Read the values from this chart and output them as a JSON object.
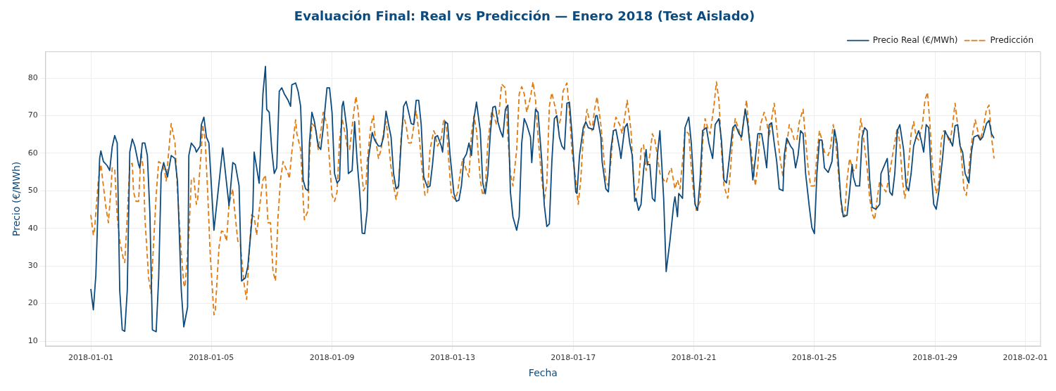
{
  "chart_data": {
    "type": "line",
    "title": "Evaluación Final: Real vs Predicción — Enero 2018 (Test Aislado)",
    "xlabel": "Fecha",
    "ylabel": "Precio (€/MWh)",
    "xlim": [
      "2017-12-30T12:00",
      "2018-02-01T12:00"
    ],
    "ylim": [
      8.7,
      87
    ],
    "xticks": [
      "2018-01-01",
      "2018-01-05",
      "2018-01-09",
      "2018-01-13",
      "2018-01-17",
      "2018-01-21",
      "2018-01-25",
      "2018-01-29",
      "2018-02-01"
    ],
    "yticks": [
      10,
      20,
      30,
      40,
      50,
      60,
      70,
      80
    ],
    "grid": true,
    "legend": "top right",
    "series": [
      {
        "name": "Precio Real (€/MWh)",
        "color": "#0d4a7d",
        "line_style": "solid",
        "x": [
          "2018-01-01T00:00",
          "2018-01-01T02:00",
          "2018-01-01T04:00",
          "2018-01-01T07:00",
          "2018-01-01T08:00",
          "2018-01-01T10:00",
          "2018-01-01T13:00",
          "2018-01-01T15:00",
          "2018-01-01T17:00",
          "2018-01-01T19:00",
          "2018-01-01T21:00",
          "2018-01-01T23:00",
          "2018-01-02T01:00",
          "2018-01-02T03:00",
          "2018-01-02T05:00",
          "2018-01-02T07:00",
          "2018-01-02T09:00",
          "2018-01-02T11:00",
          "2018-01-02T14:00",
          "2018-01-02T15:00",
          "2018-01-02T17:00",
          "2018-01-02T19:00",
          "2018-01-02T21:00",
          "2018-01-02T23:00",
          "2018-01-03T01:00",
          "2018-01-03T04:00",
          "2018-01-03T06:00",
          "2018-01-03T08:00",
          "2018-01-03T10:00",
          "2018-01-03T13:00",
          "2018-01-03T16:00",
          "2018-01-03T19:00",
          "2018-01-03T21:00",
          "2018-01-04T00:00",
          "2018-01-04T02:00",
          "2018-01-04T05:00",
          "2018-01-04T06:00",
          "2018-01-04T08:00",
          "2018-01-04T11:00",
          "2018-01-04T12:00",
          "2018-01-04T15:00",
          "2018-01-04T16:00",
          "2018-01-04T18:00",
          "2018-01-04T20:00",
          "2018-01-04T22:00",
          "2018-01-05T02:00",
          "2018-01-05T09:00",
          "2018-01-05T14:00",
          "2018-01-05T17:00",
          "2018-01-05T19:00",
          "2018-01-05T22:00",
          "2018-01-06T00:00",
          "2018-01-06T03:00",
          "2018-01-06T05:00",
          "2018-01-06T09:00",
          "2018-01-06T10:00",
          "2018-01-06T14:00",
          "2018-01-06T17:00",
          "2018-01-06T19:00",
          "2018-01-06T20:00",
          "2018-01-06T22:00",
          "2018-01-07T00:00",
          "2018-01-07T02:00",
          "2018-01-07T04:00",
          "2018-01-07T06:00",
          "2018-01-07T08:00",
          "2018-01-07T10:00",
          "2018-01-07T13:00",
          "2018-01-07T15:00",
          "2018-01-07T16:00",
          "2018-01-07T19:00",
          "2018-01-07T21:00",
          "2018-01-07T23:00",
          "2018-01-08T01:00",
          "2018-01-08T03:00",
          "2018-01-08T05:00",
          "2018-01-08T06:00",
          "2018-01-08T08:00",
          "2018-01-08T10:00",
          "2018-01-08T13:00",
          "2018-01-08T15:00",
          "2018-01-08T17:00",
          "2018-01-08T20:00",
          "2018-01-08T22:00",
          "2018-01-09T00:00",
          "2018-01-09T02:00",
          "2018-01-09T04:00",
          "2018-01-09T06:00",
          "2018-01-09T08:00",
          "2018-01-09T09:00",
          "2018-01-09T12:00",
          "2018-01-09T13:00",
          "2018-01-09T16:00",
          "2018-01-09T18:00",
          "2018-01-09T20:00",
          "2018-01-09T22:00",
          "2018-01-10T00:00",
          "2018-01-10T02:00",
          "2018-01-10T04:00",
          "2018-01-10T05:00",
          "2018-01-10T08:00",
          "2018-01-10T10:00",
          "2018-01-10T13:00",
          "2018-01-10T15:00",
          "2018-01-10T17:00",
          "2018-01-10T19:00",
          "2018-01-10T21:00",
          "2018-01-10T23:00",
          "2018-01-11T01:00",
          "2018-01-11T03:00",
          "2018-01-11T05:00",
          "2018-01-11T07:00",
          "2018-01-11T09:00",
          "2018-01-11T11:00",
          "2018-01-11T13:00",
          "2018-01-11T15:00",
          "2018-01-11T17:00",
          "2018-01-11T19:00",
          "2018-01-11T21:00",
          "2018-01-11T23:00",
          "2018-01-12T01:00",
          "2018-01-12T04:00",
          "2018-01-12T06:00",
          "2018-01-12T08:00",
          "2018-01-12T10:00",
          "2018-01-12T12:00",
          "2018-01-12T15:00",
          "2018-01-12T16:00",
          "2018-01-12T18:00",
          "2018-01-12T20:00",
          "2018-01-12T22:00",
          "2018-01-13T01:00",
          "2018-01-13T03:00",
          "2018-01-13T05:00",
          "2018-01-13T07:00",
          "2018-01-13T09:00",
          "2018-01-13T11:00",
          "2018-01-13T13:00",
          "2018-01-13T15:00",
          "2018-01-13T17:00",
          "2018-01-13T19:00",
          "2018-01-13T22:00",
          "2018-01-14T00:00",
          "2018-01-14T02:00",
          "2018-01-14T04:00",
          "2018-01-14T06:00",
          "2018-01-14T08:00",
          "2018-01-14T10:00",
          "2018-01-14T12:00",
          "2018-01-14T14:00",
          "2018-01-14T16:00",
          "2018-01-14T18:00",
          "2018-01-14T20:00",
          "2018-01-14T22:00",
          "2018-01-15T00:00",
          "2018-01-15T03:00",
          "2018-01-15T05:00",
          "2018-01-15T07:00",
          "2018-01-15T09:00",
          "2018-01-15T11:00",
          "2018-01-15T14:00",
          "2018-01-15T15:00",
          "2018-01-15T18:00",
          "2018-01-15T20:00",
          "2018-01-15T23:00",
          "2018-01-16T01:00",
          "2018-01-16T03:00",
          "2018-01-16T05:00",
          "2018-01-16T07:00",
          "2018-01-16T09:00",
          "2018-01-16T11:00",
          "2018-01-16T13:00",
          "2018-01-16T15:00",
          "2018-01-16T17:00",
          "2018-01-16T19:00",
          "2018-01-16T21:00",
          "2018-01-16T23:00",
          "2018-01-17T02:00",
          "2018-01-17T03:00",
          "2018-01-17T05:00",
          "2018-01-17T08:00",
          "2018-01-17T10:00",
          "2018-01-17T12:00",
          "2018-01-17T16:00",
          "2018-01-17T18:00",
          "2018-01-17T19:00",
          "2018-01-17T22:00",
          "2018-01-17T23:00",
          "2018-01-18T02:00",
          "2018-01-18T04:00",
          "2018-01-18T06:00",
          "2018-01-18T08:00",
          "2018-01-18T10:00",
          "2018-01-18T13:00",
          "2018-01-18T14:00",
          "2018-01-18T17:00",
          "2018-01-18T19:00",
          "2018-01-18T21:00",
          "2018-01-18T23:00",
          "2018-01-19T01:00",
          "2018-01-19T02:00",
          "2018-01-19T04:00",
          "2018-01-19T06:00",
          "2018-01-19T08:00",
          "2018-01-19T10:00",
          "2018-01-19T11:00",
          "2018-01-19T13:00",
          "2018-01-19T15:00",
          "2018-01-19T17:00",
          "2018-01-19T19:00",
          "2018-01-19T21:00",
          "2018-01-20T00:00",
          "2018-01-20T01:00",
          "2018-01-20T02:00",
          "2018-01-20T05:00",
          "2018-01-20T08:00",
          "2018-01-20T09:00",
          "2018-01-20T11:00",
          "2018-01-20T12:00",
          "2018-01-20T15:00",
          "2018-01-20T17:00",
          "2018-01-20T20:00",
          "2018-01-20T22:00",
          "2018-01-21T01:00",
          "2018-01-21T03:00",
          "2018-01-21T05:00",
          "2018-01-21T07:00",
          "2018-01-21T10:00",
          "2018-01-21T12:00",
          "2018-01-21T15:00",
          "2018-01-21T17:00",
          "2018-01-21T20:00",
          "2018-01-21T22:00",
          "2018-01-22T00:00",
          "2018-01-22T02:00",
          "2018-01-22T04:00",
          "2018-01-22T07:00",
          "2018-01-22T09:00",
          "2018-01-22T12:00",
          "2018-01-22T14:00",
          "2018-01-22T17:00",
          "2018-01-22T19:00",
          "2018-01-22T21:00",
          "2018-01-22T23:00",
          "2018-01-23T01:00",
          "2018-01-23T03:00",
          "2018-01-23T06:00",
          "2018-01-23T08:00",
          "2018-01-23T10:00",
          "2018-01-23T12:00",
          "2018-01-23T14:00",
          "2018-01-23T16:00",
          "2018-01-23T18:00",
          "2018-01-23T20:00",
          "2018-01-23T23:00",
          "2018-01-24T00:00",
          "2018-01-24T02:00",
          "2018-01-24T05:00",
          "2018-01-24T07:00",
          "2018-01-24T09:00",
          "2018-01-24T11:00",
          "2018-01-24T13:00",
          "2018-01-24T15:00",
          "2018-01-24T17:00",
          "2018-01-24T20:00",
          "2018-01-24T22:00",
          "2018-01-25T00:00",
          "2018-01-25T02:00",
          "2018-01-25T04:00",
          "2018-01-25T06:00",
          "2018-01-25T08:00",
          "2018-01-25T11:00",
          "2018-01-25T14:00",
          "2018-01-25T16:00",
          "2018-01-25T18:00",
          "2018-01-25T21:00",
          "2018-01-25T23:00",
          "2018-01-26T02:00",
          "2018-01-26T04:00",
          "2018-01-26T06:00",
          "2018-01-26T07:00",
          "2018-01-26T09:00",
          "2018-01-26T12:00",
          "2018-01-26T14:00",
          "2018-01-26T16:00",
          "2018-01-26T18:00",
          "2018-01-26T20:00",
          "2018-01-26T22:00",
          "2018-01-27T01:00",
          "2018-01-27T04:00",
          "2018-01-27T05:00",
          "2018-01-27T08:00",
          "2018-01-27T10:00",
          "2018-01-27T12:00",
          "2018-01-27T14:00",
          "2018-01-27T16:00",
          "2018-01-27T18:00",
          "2018-01-27T20:00",
          "2018-01-27T23:00",
          "2018-01-28T01:00",
          "2018-01-28T03:00",
          "2018-01-28T05:00",
          "2018-01-28T07:00",
          "2018-01-28T09:00",
          "2018-01-28T11:00",
          "2018-01-28T13:00",
          "2018-01-28T15:00",
          "2018-01-28T17:00",
          "2018-01-28T19:00",
          "2018-01-28T21:00",
          "2018-01-28T23:00",
          "2018-01-29T01:00",
          "2018-01-29T03:00",
          "2018-01-29T06:00",
          "2018-01-29T08:00",
          "2018-01-29T09:00",
          "2018-01-29T12:00",
          "2018-01-29T14:00",
          "2018-01-29T16:00",
          "2018-01-29T18:00",
          "2018-01-29T20:00",
          "2018-01-29T22:00",
          "2018-01-30T00:00",
          "2018-01-30T03:00",
          "2018-01-30T05:00",
          "2018-01-30T07:00",
          "2018-01-30T10:00",
          "2018-01-30T12:00",
          "2018-01-30T14:00",
          "2018-01-30T17:00",
          "2018-01-30T19:00",
          "2018-01-30T21:00",
          "2018-01-30T23:00"
        ],
        "values": [
          23.9,
          18.3,
          27.6,
          58.6,
          60.6,
          57.8,
          56.7,
          55.4,
          61.7,
          64.7,
          62.7,
          23.5,
          13,
          12.6,
          23.5,
          60.3,
          63.8,
          61.9,
          57,
          56,
          62.7,
          62.7,
          59.4,
          44,
          13,
          12.5,
          26.8,
          54.6,
          57.5,
          53.7,
          59.4,
          58.6,
          52.4,
          23.5,
          13.8,
          19,
          59.4,
          62.7,
          61.4,
          60.3,
          61.9,
          67.6,
          69.6,
          64.3,
          62.7,
          39.5,
          61.4,
          46,
          57.5,
          57,
          51.3,
          26,
          26.8,
          30,
          45.1,
          60.3,
          52,
          75.8,
          83.1,
          71.7,
          70.9,
          61,
          54.6,
          56.1,
          76.5,
          77.4,
          75.8,
          74.1,
          72.5,
          78.2,
          78.7,
          76.5,
          72.5,
          52.9,
          50.5,
          50,
          62.7,
          70.9,
          68.4,
          61.9,
          61,
          66.8,
          77.4,
          77.4,
          70.9,
          54.6,
          52.1,
          52.9,
          72.5,
          73.8,
          66,
          54.6,
          55.4,
          68.4,
          57.8,
          49.7,
          38.7,
          38.6,
          44.7,
          58.6,
          65.5,
          63.5,
          61.9,
          61.9,
          64.3,
          71.2,
          67.6,
          64.3,
          54.6,
          50.5,
          51.3,
          62.7,
          72.5,
          73.8,
          70.9,
          67.9,
          67.6,
          74.1,
          74.1,
          67.6,
          53.7,
          50.9,
          51.3,
          57,
          64.3,
          64.7,
          61.9,
          60.3,
          68.4,
          67.9,
          59.4,
          49.3,
          47.2,
          47.5,
          51.3,
          58.6,
          59.8,
          62.7,
          59.4,
          69.2,
          73.6,
          66,
          52.1,
          49.2,
          54.2,
          65.2,
          72.2,
          72.5,
          68.4,
          66,
          64.3,
          71.7,
          72.8,
          49.7,
          43.1,
          39.5,
          43.1,
          62.7,
          69.2,
          67.6,
          64.3,
          57.5,
          71.7,
          70.9,
          57.8,
          46.1,
          40.5,
          41.2,
          57.8,
          69.2,
          70,
          64.3,
          61.9,
          61,
          73.3,
          73.6,
          65.2,
          49.7,
          49.3,
          59.4,
          66.8,
          68.4,
          66.8,
          66.3,
          70,
          70,
          64.3,
          57.8,
          50.5,
          49.7,
          61,
          66,
          66.3,
          61,
          58.6,
          66.8,
          67.9,
          62.7,
          59.4,
          47.2,
          48,
          44.8,
          46.4,
          55.4,
          61,
          57,
          57,
          48,
          47.2,
          59.4,
          66,
          48,
          38.2,
          28.5,
          36.6,
          46.4,
          48.4,
          43.1,
          49.3,
          48,
          66.8,
          69.6,
          62.7,
          46.4,
          44.8,
          52.9,
          66,
          66.8,
          62.7,
          58.6,
          67.6,
          69.2,
          63.5,
          52.9,
          52.1,
          57.8,
          66.8,
          67.6,
          65.2,
          64.3,
          71.7,
          67.6,
          61,
          52.9,
          58.6,
          65.2,
          65.2,
          61,
          56.1,
          67.6,
          68.1,
          62.7,
          57.8,
          50.5,
          50,
          59.4,
          64,
          61.9,
          61,
          56.1,
          59.4,
          66,
          65.2,
          54.6,
          45.6,
          40.2,
          38.6,
          54.6,
          63.5,
          63.5,
          56.1,
          54.9,
          57.8,
          66.3,
          62.7,
          48,
          43.1,
          43.5,
          49.7,
          57,
          53.7,
          51.3,
          51.3,
          64.3,
          66.8,
          66,
          52.9,
          45.6,
          45.1,
          46.4,
          54.6,
          57,
          58.6,
          49.7,
          48.8,
          54.6,
          66,
          67.6,
          61,
          51.3,
          50,
          54.6,
          61.9,
          64.3,
          66,
          63.5,
          60.3,
          67.6,
          66.8,
          54.6,
          46.4,
          45.1,
          49.7,
          58.6,
          66,
          65.2,
          63.5,
          61.9,
          67.3,
          67.6,
          61.9,
          60.3,
          54.6,
          52.1,
          60.3,
          64.3,
          64.8,
          63.5,
          64.3,
          67.9,
          68.7,
          65.2,
          64
        ]
      },
      {
        "name": "Predicción",
        "color": "#e07b10",
        "line_style": "dashed",
        "x": [
          "2018-01-01T00:00",
          "2018-01-01T02:00",
          "2018-01-01T03:00",
          "2018-01-01T06:00",
          "2018-01-01T08:00",
          "2018-01-01T10:00",
          "2018-01-01T12:00",
          "2018-01-01T14:00",
          "2018-01-01T16:00",
          "2018-01-01T17:00",
          "2018-01-01T19:00",
          "2018-01-01T21:00",
          "2018-01-01T23:00",
          "2018-01-02T02:00",
          "2018-01-02T03:00",
          "2018-01-02T05:00",
          "2018-01-02T07:00",
          "2018-01-02T09:00",
          "2018-01-02T10:00",
          "2018-01-02T12:00",
          "2018-01-02T14:00",
          "2018-01-02T16:00",
          "2018-01-02T18:00",
          "2018-01-02T19:00",
          "2018-01-02T22:00",
          "2018-01-03T00:00",
          "2018-01-03T01:00",
          "2018-01-03T04:00",
          "2018-01-03T06:00",
          "2018-01-03T09:00",
          "2018-01-03T11:00",
          "2018-01-03T12:00",
          "2018-01-03T15:00",
          "2018-01-03T16:00",
          "2018-01-03T19:00",
          "2018-01-03T21:00",
          "2018-01-04T00:00",
          "2018-01-04T02:00",
          "2018-01-04T03:00",
          "2018-01-04T06:00",
          "2018-01-04T08:00",
          "2018-01-04T10:00",
          "2018-01-04T12:00",
          "2018-01-04T13:00",
          "2018-01-04T16:00",
          "2018-01-04T17:00",
          "2018-01-04T19:00",
          "2018-01-04T21:00",
          "2018-01-04T23:00",
          "2018-01-05T02:00",
          "2018-01-05T03:00",
          "2018-01-05T06:00",
          "2018-01-05T08:00",
          "2018-01-05T10:00",
          "2018-01-05T12:00",
          "2018-01-05T14:00",
          "2018-01-05T17:00",
          "2018-01-05T18:00",
          "2018-01-05T21:00",
          "2018-01-05T23:00",
          "2018-01-06T02:00",
          "2018-01-06T04:00",
          "2018-01-06T06:00",
          "2018-01-06T08:00",
          "2018-01-06T10:00",
          "2018-01-06T12:00",
          "2018-01-06T14:00",
          "2018-01-06T17:00",
          "2018-01-06T19:00",
          "2018-01-06T21:00",
          "2018-01-06T23:00",
          "2018-01-07T01:00",
          "2018-01-07T03:00",
          "2018-01-07T05:00",
          "2018-01-07T07:00",
          "2018-01-07T09:00",
          "2018-01-07T11:00",
          "2018-01-07T13:00",
          "2018-01-07T14:00",
          "2018-01-07T16:00",
          "2018-01-07T19:00",
          "2018-01-07T20:00",
          "2018-01-07T23:00",
          "2018-01-08T01:00",
          "2018-01-08T02:00",
          "2018-01-08T05:00",
          "2018-01-08T06:00",
          "2018-01-08T08:00",
          "2018-01-08T11:00",
          "2018-01-08T13:00",
          "2018-01-08T15:00",
          "2018-01-08T17:00",
          "2018-01-08T20:00",
          "2018-01-08T22:00",
          "2018-01-09T00:00",
          "2018-01-09T02:00",
          "2018-01-09T04:00",
          "2018-01-09T06:00",
          "2018-01-09T08:00",
          "2018-01-09T10:00",
          "2018-01-09T12:00",
          "2018-01-09T14:00",
          "2018-01-09T17:00",
          "2018-01-09T19:00",
          "2018-01-09T21:00",
          "2018-01-09T23:00",
          "2018-01-10T01:00",
          "2018-01-10T03:00",
          "2018-01-10T04:00",
          "2018-01-10T07:00",
          "2018-01-10T09:00",
          "2018-01-10T10:00",
          "2018-01-10T13:00",
          "2018-01-10T15:00",
          "2018-01-10T17:00",
          "2018-01-10T19:00",
          "2018-01-10T20:00",
          "2018-01-10T23:00",
          "2018-01-11T01:00",
          "2018-01-11T03:00",
          "2018-01-11T05:00",
          "2018-01-11T07:00",
          "2018-01-11T09:00",
          "2018-01-11T11:00",
          "2018-01-11T13:00",
          "2018-01-11T15:00",
          "2018-01-11T18:00",
          "2018-01-11T19:00",
          "2018-01-11T21:00",
          "2018-01-12T00:00",
          "2018-01-12T02:00",
          "2018-01-12T04:00",
          "2018-01-12T06:00",
          "2018-01-12T09:00",
          "2018-01-12T10:00",
          "2018-01-12T12:00",
          "2018-01-12T15:00",
          "2018-01-12T17:00",
          "2018-01-12T19:00",
          "2018-01-12T21:00",
          "2018-01-12T23:00",
          "2018-01-13T02:00",
          "2018-01-13T04:00",
          "2018-01-13T06:00",
          "2018-01-13T08:00",
          "2018-01-13T11:00",
          "2018-01-13T13:00",
          "2018-01-13T15:00",
          "2018-01-13T17:00",
          "2018-01-13T19:00",
          "2018-01-13T22:00",
          "2018-01-14T00:00",
          "2018-01-14T02:00",
          "2018-01-14T04:00",
          "2018-01-14T07:00",
          "2018-01-14T09:00",
          "2018-01-14T11:00",
          "2018-01-14T13:00",
          "2018-01-14T15:00",
          "2018-01-14T18:00",
          "2018-01-14T20:00",
          "2018-01-14T22:00",
          "2018-01-15T00:00",
          "2018-01-15T03:00",
          "2018-01-15T05:00",
          "2018-01-15T07:00",
          "2018-01-15T09:00",
          "2018-01-15T11:00",
          "2018-01-15T14:00",
          "2018-01-15T16:00",
          "2018-01-15T18:00",
          "2018-01-15T20:00",
          "2018-01-15T23:00",
          "2018-01-16T01:00",
          "2018-01-16T03:00",
          "2018-01-16T05:00",
          "2018-01-16T07:00",
          "2018-01-16T10:00",
          "2018-01-16T12:00",
          "2018-01-16T14:00",
          "2018-01-16T16:00",
          "2018-01-16T19:00",
          "2018-01-16T21:00",
          "2018-01-16T23:00",
          "2018-01-17T02:00",
          "2018-01-17T04:00",
          "2018-01-17T06:00",
          "2018-01-17T08:00",
          "2018-01-17T11:00",
          "2018-01-17T13:00",
          "2018-01-17T15:00",
          "2018-01-17T17:00",
          "2018-01-17T19:00",
          "2018-01-17T22:00",
          "2018-01-18T00:00",
          "2018-01-18T02:00",
          "2018-01-18T04:00",
          "2018-01-18T06:00",
          "2018-01-18T08:00",
          "2018-01-18T10:00",
          "2018-01-18T13:00",
          "2018-01-18T15:00",
          "2018-01-18T17:00",
          "2018-01-18T19:00",
          "2018-01-18T22:00",
          "2018-01-19T00:00",
          "2018-01-19T01:00",
          "2018-01-19T04:00",
          "2018-01-19T06:00",
          "2018-01-19T08:00",
          "2018-01-19T10:00",
          "2018-01-19T13:00",
          "2018-01-19T15:00",
          "2018-01-19T17:00",
          "2018-01-19T19:00",
          "2018-01-19T21:00",
          "2018-01-20T00:00",
          "2018-01-20T02:00",
          "2018-01-20T04:00",
          "2018-01-20T06:00",
          "2018-01-20T09:00",
          "2018-01-20T11:00",
          "2018-01-20T13:00",
          "2018-01-20T15:00",
          "2018-01-20T17:00",
          "2018-01-20T20:00",
          "2018-01-20T22:00",
          "2018-01-21T00:00",
          "2018-01-21T02:00",
          "2018-01-21T05:00",
          "2018-01-21T07:00",
          "2018-01-21T09:00",
          "2018-01-21T11:00",
          "2018-01-21T13:00",
          "2018-01-21T16:00",
          "2018-01-21T18:00",
          "2018-01-21T20:00",
          "2018-01-21T22:00",
          "2018-01-22T00:00",
          "2018-01-22T03:00",
          "2018-01-22T05:00",
          "2018-01-22T07:00",
          "2018-01-22T09:00",
          "2018-01-22T12:00",
          "2018-01-22T14:00",
          "2018-01-22T16:00",
          "2018-01-22T18:00",
          "2018-01-22T20:00",
          "2018-01-22T23:00",
          "2018-01-23T01:00",
          "2018-01-23T03:00",
          "2018-01-23T05:00",
          "2018-01-23T08:00",
          "2018-01-23T10:00",
          "2018-01-23T12:00",
          "2018-01-23T14:00",
          "2018-01-23T16:00",
          "2018-01-23T19:00",
          "2018-01-23T21:00",
          "2018-01-23T23:00",
          "2018-01-24T01:00",
          "2018-01-24T04:00",
          "2018-01-24T06:00",
          "2018-01-24T08:00",
          "2018-01-24T10:00",
          "2018-01-24T12:00",
          "2018-01-24T15:00",
          "2018-01-24T17:00",
          "2018-01-24T19:00",
          "2018-01-24T21:00",
          "2018-01-25T00:00",
          "2018-01-25T02:00",
          "2018-01-25T04:00",
          "2018-01-25T06:00",
          "2018-01-25T08:00",
          "2018-01-25T11:00",
          "2018-01-25T13:00",
          "2018-01-25T15:00",
          "2018-01-25T17:00",
          "2018-01-25T20:00",
          "2018-01-25T22:00",
          "2018-01-26T00:00",
          "2018-01-26T02:00",
          "2018-01-26T04:00",
          "2018-01-26T07:00",
          "2018-01-26T09:00",
          "2018-01-26T11:00",
          "2018-01-26T13:00",
          "2018-01-26T15:00",
          "2018-01-26T18:00",
          "2018-01-26T20:00",
          "2018-01-26T22:00",
          "2018-01-27T00:00",
          "2018-01-27T02:00",
          "2018-01-27T04:00",
          "2018-01-27T06:00",
          "2018-01-27T09:00",
          "2018-01-27T11:00",
          "2018-01-27T13:00",
          "2018-01-27T15:00",
          "2018-01-27T18:00",
          "2018-01-27T20:00",
          "2018-01-27T22:00",
          "2018-01-28T00:00",
          "2018-01-28T02:00",
          "2018-01-28T05:00",
          "2018-01-28T07:00",
          "2018-01-28T09:00",
          "2018-01-28T11:00",
          "2018-01-28T14:00",
          "2018-01-28T16:00",
          "2018-01-28T18:00",
          "2018-01-28T20:00",
          "2018-01-28T22:00",
          "2018-01-29T01:00",
          "2018-01-29T03:00",
          "2018-01-29T05:00",
          "2018-01-29T07:00",
          "2018-01-29T10:00",
          "2018-01-29T12:00",
          "2018-01-29T14:00",
          "2018-01-29T16:00",
          "2018-01-29T18:00",
          "2018-01-29T21:00",
          "2018-01-29T23:00",
          "2018-01-30T01:00",
          "2018-01-30T03:00",
          "2018-01-30T06:00",
          "2018-01-30T08:00",
          "2018-01-30T10:00",
          "2018-01-30T12:00",
          "2018-01-30T14:00",
          "2018-01-30T17:00",
          "2018-01-30T19:00",
          "2018-01-30T21:00",
          "2018-01-30T23:00"
        ],
        "values": [
          43.6,
          38.2,
          39.9,
          52.9,
          57,
          51.3,
          45.6,
          41.5,
          50.5,
          56.1,
          55.9,
          43.1,
          36.6,
          31.7,
          30.9,
          43.1,
          57,
          57.3,
          49.7,
          47.2,
          47.2,
          60.3,
          55.4,
          43.1,
          26.8,
          22.7,
          30,
          48.8,
          57.8,
          57,
          54.6,
          52.6,
          64.3,
          67.9,
          62.7,
          49.7,
          33.3,
          25.2,
          24.4,
          38.2,
          52.9,
          53.4,
          46.4,
          47.7,
          61,
          67.6,
          63.5,
          49.7,
          33.3,
          17,
          17.8,
          34.9,
          39.3,
          39,
          36.6,
          46.4,
          50.5,
          46.4,
          36.6,
          35.8,
          25.2,
          21.1,
          33.3,
          43.6,
          43.1,
          38.2,
          44.8,
          52.9,
          54.2,
          41.5,
          41.5,
          28.5,
          26,
          43.1,
          52.9,
          57.8,
          56.1,
          54.6,
          53.2,
          60.3,
          68.9,
          65.2,
          61,
          48,
          42.3,
          44.8,
          59.4,
          67.9,
          66.8,
          61,
          65.5,
          70.9,
          67.6,
          57.8,
          48.8,
          47.2,
          49.7,
          63.5,
          69.2,
          66,
          61.9,
          61,
          70,
          75.1,
          70.9,
          57.8,
          50,
          51.3,
          57.8,
          67.6,
          70,
          65.2,
          58.6,
          61,
          65.6,
          68.4,
          66,
          56.1,
          51.3,
          47.7,
          51.3,
          64.3,
          70,
          67.3,
          62.7,
          62.7,
          69.2,
          71.2,
          66,
          54.6,
          48.8,
          49.3,
          61,
          66,
          65.2,
          61.9,
          64,
          69.2,
          67.6,
          57.8,
          48.8,
          47.7,
          49.7,
          54.6,
          58.6,
          55.4,
          53.7,
          65.2,
          70,
          66,
          52.9,
          48.8,
          50.5,
          62.7,
          71.2,
          69.7,
          67.6,
          70.9,
          78.4,
          77.4,
          64.3,
          54.6,
          51.3,
          61,
          75.8,
          77.7,
          75.8,
          70.9,
          75,
          79,
          74.1,
          64.3,
          52.9,
          47.7,
          52.1,
          72.5,
          76.1,
          71.7,
          66.8,
          69.2,
          76.6,
          78.7,
          70.9,
          60.3,
          52.9,
          46.4,
          52.9,
          64.3,
          71.7,
          68.4,
          66,
          71.7,
          75,
          67.6,
          60.3,
          52.9,
          51.3,
          57.8,
          66,
          69.6,
          67.6,
          65.2,
          69.6,
          74.1,
          66,
          53.7,
          48.8,
          51.3,
          61,
          62.2,
          55.4,
          59.4,
          65.2,
          63.5,
          59.4,
          54.6,
          52.9,
          52.1,
          54.6,
          56.1,
          50.5,
          52.9,
          50.5,
          57.8,
          66,
          65.2,
          56.1,
          48.8,
          44.8,
          47.2,
          62.7,
          69.2,
          66.8,
          65.2,
          72.5,
          79,
          74.1,
          61,
          51.3,
          48,
          54.6,
          64.3,
          69.2,
          66,
          63.5,
          70,
          74.1,
          65.2,
          57,
          51.3,
          57,
          67.6,
          70.9,
          68.4,
          64.3,
          69.2,
          73.3,
          63.5,
          57.8,
          53.7,
          59.4,
          67.6,
          66,
          63.5,
          63.5,
          68.4,
          71.7,
          63.5,
          56.1,
          51.3,
          51.3,
          59.4,
          66,
          63.5,
          60.3,
          59.4,
          61.9,
          67.6,
          62.7,
          51.3,
          43.9,
          43.1,
          52.9,
          58.6,
          55.4,
          55.4,
          62.7,
          69.2,
          64.3,
          56.1,
          48,
          43.9,
          42.3,
          48,
          52.6,
          51.3,
          49.7,
          52.9,
          57,
          61,
          66.8,
          62.7,
          52.9,
          48,
          52.9,
          65.2,
          68.4,
          64.3,
          63.5,
          67.6,
          74.1,
          76.2,
          67.6,
          56.1,
          49.3,
          52.1,
          63.5,
          66,
          64.3,
          62.7,
          67.6,
          73.3,
          67.6,
          59.4,
          50.5,
          48.8,
          56.1,
          65.2,
          68.9,
          66,
          63.5,
          66,
          71.7,
          72.8,
          64.3,
          58.6
        ]
      }
    ]
  }
}
